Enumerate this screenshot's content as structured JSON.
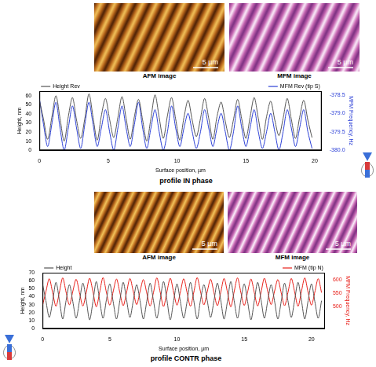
{
  "image_rows": [
    {
      "panels": [
        {
          "label": "AFM image",
          "scale_bar": "5 µm"
        },
        {
          "label": "MFM image",
          "scale_bar": "5 µm"
        }
      ]
    },
    {
      "panels": [
        {
          "label": "AFM image",
          "scale_bar": "5 µm"
        },
        {
          "label": "MFM image",
          "scale_bar": "5 µm"
        }
      ]
    }
  ],
  "chart_data": [
    {
      "type": "line",
      "title": "profile IN phase",
      "x_label": "Surface position, µm",
      "y_label": "Height, nm",
      "y2_label": "MFM Frequency, Hz",
      "x": [
        0,
        0.3,
        0.6,
        0.9,
        1.2,
        1.5,
        1.8,
        2.1,
        2.4,
        2.7,
        3,
        3.3,
        3.6,
        3.9,
        4.2,
        4.5,
        4.8,
        5.1,
        5.4,
        5.7,
        6,
        6.3,
        6.6,
        6.9,
        7.2,
        7.5,
        7.8,
        8.1,
        8.4,
        8.7,
        9,
        9.3,
        9.6,
        9.9,
        10.2,
        10.5,
        10.8,
        11.1,
        11.4,
        11.7,
        12,
        12.3,
        12.6,
        12.9,
        13.2,
        13.5,
        13.8,
        14.1,
        14.4,
        14.7,
        15,
        15.3,
        15.6,
        15.9,
        16.2,
        16.5,
        16.8,
        17.1,
        17.4,
        17.7,
        18,
        18.3,
        18.6,
        18.9,
        19.2,
        19.5,
        19.8
      ],
      "xlim": [
        0,
        20.5
      ],
      "xticks": [
        0,
        5,
        10,
        15,
        20
      ],
      "ylim": [
        0,
        65
      ],
      "yticks": [
        0,
        10,
        20,
        30,
        40,
        50,
        60
      ],
      "y2lim": [
        -380,
        -378.4
      ],
      "y2ticks": [
        {
          "value": -380,
          "label": "-380.0"
        },
        -379.5,
        {
          "value": -379,
          "label": "-379.0"
        },
        -378.5
      ],
      "grid": false,
      "legend": "top",
      "series": [
        {
          "name": "Height Rev",
          "color": "#555555",
          "values": [
            55,
            34,
            12,
            36,
            60,
            35,
            10,
            37,
            58,
            33,
            13,
            35,
            62,
            36,
            11,
            38,
            57,
            34,
            14,
            36,
            59,
            35,
            12,
            37,
            56,
            33,
            10,
            35,
            61,
            36,
            13,
            38,
            58,
            34,
            11,
            36,
            55,
            33,
            15,
            35,
            57,
            35,
            12,
            37,
            53,
            32,
            14,
            34,
            56,
            34,
            13,
            36,
            58,
            35,
            12,
            37,
            54,
            33,
            16,
            35,
            57,
            34,
            13,
            36,
            55,
            33,
            14
          ]
        },
        {
          "name": "MFM Rev (tip S)",
          "color": "#2b3fd6",
          "axis": "y2",
          "values": [
            -378.6,
            -379.3,
            -379.9,
            -379.3,
            -378.7,
            -379.4,
            -380.0,
            -379.4,
            -378.8,
            -379.4,
            -379.95,
            -379.3,
            -378.7,
            -379.3,
            -379.9,
            -379.4,
            -378.9,
            -379.5,
            -380.0,
            -379.4,
            -378.8,
            -379.4,
            -379.9,
            -379.3,
            -378.7,
            -379.4,
            -379.95,
            -379.4,
            -378.9,
            -379.5,
            -380.0,
            -379.5,
            -378.8,
            -379.4,
            -379.9,
            -379.4,
            -379.0,
            -379.5,
            -379.95,
            -379.5,
            -378.9,
            -379.4,
            -379.9,
            -379.4,
            -379.0,
            -379.5,
            -380.0,
            -379.5,
            -378.8,
            -379.4,
            -379.9,
            -379.4,
            -378.9,
            -379.5,
            -379.95,
            -379.5,
            -379.0,
            -379.5,
            -380.0,
            -379.5,
            -378.9,
            -379.4,
            -379.9,
            -379.4,
            -378.9,
            -379.5,
            -379.95
          ]
        }
      ]
    },
    {
      "type": "line",
      "title": "profile CONTR phase",
      "x_label": "Surface position, µm",
      "y_label": "Height, nm",
      "y2_label": "MFM Frequency, Hz",
      "x": [
        0,
        0.25,
        0.5,
        0.75,
        1,
        1.25,
        1.5,
        1.75,
        2,
        2.25,
        2.5,
        2.75,
        3,
        3.25,
        3.5,
        3.75,
        4,
        4.25,
        4.5,
        4.75,
        5,
        5.25,
        5.5,
        5.75,
        6,
        6.25,
        6.5,
        6.75,
        7,
        7.25,
        7.5,
        7.75,
        8,
        8.25,
        8.5,
        8.75,
        9,
        9.25,
        9.5,
        9.75,
        10,
        10.25,
        10.5,
        10.75,
        11,
        11.25,
        11.5,
        11.75,
        12,
        12.25,
        12.5,
        12.75,
        13,
        13.25,
        13.5,
        13.75,
        14,
        14.25,
        14.5,
        14.75,
        15,
        15.25,
        15.5,
        15.75,
        16,
        16.25,
        16.5,
        16.75,
        17,
        17.25,
        17.5,
        17.75,
        18,
        18.25,
        18.5,
        18.75,
        19,
        19.25,
        19.5,
        19.75,
        20,
        20.25,
        20.5,
        20.75
      ],
      "xlim": [
        0,
        21
      ],
      "xticks": [
        0,
        5,
        10,
        15,
        20
      ],
      "ylim": [
        0,
        70
      ],
      "yticks": [
        0,
        10,
        20,
        30,
        40,
        50,
        60,
        70
      ],
      "y2lim": [
        420,
        625
      ],
      "y2ticks": [
        500,
        550,
        600
      ],
      "grid": false,
      "legend": "top",
      "series": [
        {
          "name": "Height",
          "color": "#555555",
          "values": [
            56,
            35,
            14,
            34,
            58,
            36,
            12,
            35,
            55,
            34,
            13,
            35,
            57,
            36,
            11,
            34,
            59,
            35,
            13,
            36,
            56,
            34,
            12,
            35,
            58,
            36,
            14,
            35,
            55,
            35,
            12,
            34,
            57,
            35,
            13,
            36,
            59,
            36,
            11,
            35,
            56,
            34,
            13,
            34,
            58,
            35,
            12,
            36,
            55,
            35,
            14,
            35,
            57,
            36,
            12,
            34,
            59,
            35,
            13,
            36,
            56,
            34,
            11,
            35,
            58,
            36,
            13,
            35,
            55,
            35,
            12,
            34,
            57,
            35,
            14,
            36,
            58,
            36,
            12,
            35,
            56,
            34,
            13,
            35
          ]
        },
        {
          "name": "MFM (tip N)",
          "color": "#e8201a",
          "axis": "y2",
          "values": [
            505,
            555,
            603,
            552,
            502,
            553,
            606,
            554,
            507,
            556,
            601,
            551,
            503,
            552,
            605,
            555,
            500,
            554,
            607,
            553,
            506,
            555,
            602,
            552,
            504,
            553,
            604,
            556,
            508,
            556,
            600,
            551,
            503,
            552,
            606,
            554,
            501,
            555,
            605,
            553,
            506,
            554,
            603,
            552,
            502,
            553,
            607,
            555,
            507,
            556,
            601,
            551,
            504,
            552,
            604,
            554,
            500,
            555,
            606,
            553,
            505,
            554,
            602,
            552,
            503,
            553,
            605,
            556,
            508,
            556,
            600,
            551,
            504,
            552,
            604,
            554,
            502,
            555,
            606,
            553,
            506,
            554,
            603,
            552
          ]
        }
      ]
    }
  ]
}
